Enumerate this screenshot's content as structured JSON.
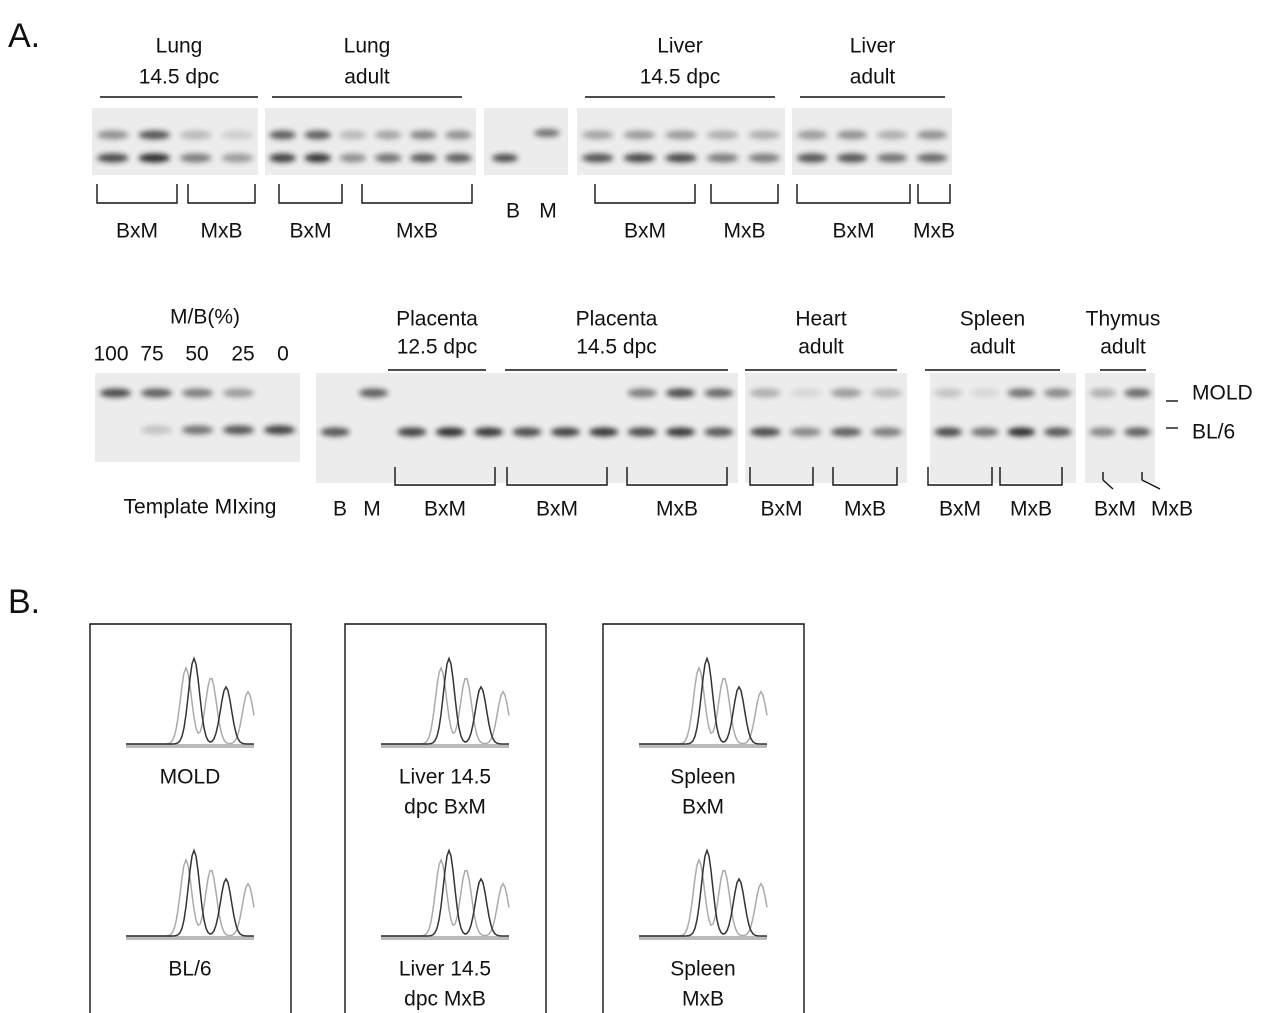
{
  "panel_a": {
    "label": "A.",
    "row1": [
      {
        "title": [
          "Lung",
          "14.5 dpc"
        ],
        "groups": [
          "BxM",
          "MxB"
        ]
      },
      {
        "title": [
          "Lung",
          "adult"
        ],
        "groups": [
          "BxM",
          "MxB"
        ]
      },
      {
        "markers": [
          "B",
          "M"
        ]
      },
      {
        "title": [
          "Liver",
          "14.5 dpc"
        ],
        "groups": [
          "BxM",
          "MxB"
        ]
      },
      {
        "title": [
          "Liver",
          "adult"
        ],
        "groups": [
          "BxM",
          "MxB"
        ]
      }
    ],
    "mixing": {
      "title": "M/B(%)",
      "percentages": [
        100,
        75,
        50,
        25,
        0
      ],
      "caption": "Template MIxing"
    },
    "row2": {
      "markers": [
        "B",
        "M"
      ],
      "sections": [
        {
          "title": [
            "Placenta",
            "12.5 dpc"
          ],
          "groups": [
            "BxM"
          ]
        },
        {
          "title": [
            "Placenta",
            "14.5 dpc"
          ],
          "groups": [
            "BxM",
            "MxB"
          ]
        },
        {
          "title": [
            "Heart",
            "adult"
          ],
          "groups": [
            "BxM",
            "MxB"
          ]
        },
        {
          "title": [
            "Spleen",
            "adult"
          ],
          "groups": [
            "BxM",
            "MxB"
          ]
        },
        {
          "title": [
            "Thymus",
            "adult"
          ],
          "groups": [
            "BxM",
            "MxB"
          ]
        }
      ]
    },
    "band_labels": [
      "MOLD",
      "BL/6"
    ]
  },
  "panel_b": {
    "label": "B.",
    "boxes": [
      {
        "traces": [
          [
            "MOLD"
          ],
          [
            "BL/6"
          ]
        ]
      },
      {
        "traces": [
          [
            "Liver 14.5",
            "dpc BxM"
          ],
          [
            "Liver 14.5",
            "dpc MxB"
          ]
        ]
      },
      {
        "traces": [
          [
            "Spleen",
            "BxM"
          ],
          [
            "Spleen",
            "MxB"
          ]
        ]
      }
    ]
  }
}
